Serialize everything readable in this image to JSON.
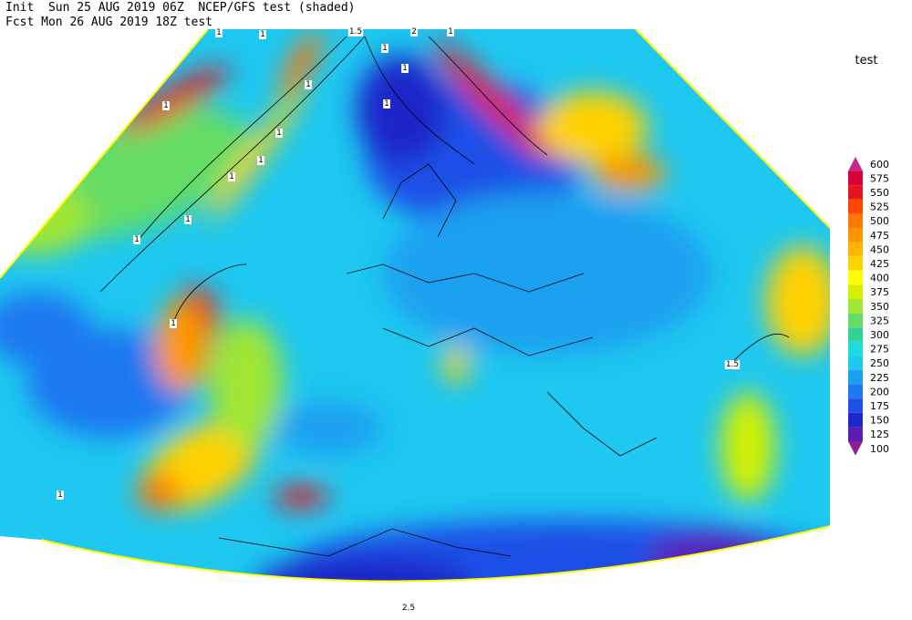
{
  "header": {
    "line1": "Init  Sun 25 AUG 2019 06Z  NCEP/GFS test (shaded)",
    "line2": "Fcst Mon 26 AUG 2019 18Z test"
  },
  "legend": {
    "title": "test",
    "levels": [
      {
        "label": "600",
        "color": "#c8288c"
      },
      {
        "label": "575",
        "color": "#d7003c"
      },
      {
        "label": "550",
        "color": "#e6141e"
      },
      {
        "label": "525",
        "color": "#ff4600"
      },
      {
        "label": "500",
        "color": "#ff7800"
      },
      {
        "label": "475",
        "color": "#ff9600"
      },
      {
        "label": "450",
        "color": "#ffb400"
      },
      {
        "label": "425",
        "color": "#ffd200"
      },
      {
        "label": "400",
        "color": "#ffff00"
      },
      {
        "label": "375",
        "color": "#d2f000"
      },
      {
        "label": "350",
        "color": "#a0e632"
      },
      {
        "label": "325",
        "color": "#64dc64"
      },
      {
        "label": "300",
        "color": "#32d296"
      },
      {
        "label": "275",
        "color": "#1edcdc"
      },
      {
        "label": "250",
        "color": "#1ec8f0"
      },
      {
        "label": "225",
        "color": "#1ea0f0"
      },
      {
        "label": "200",
        "color": "#1e78f0"
      },
      {
        "label": "175",
        "color": "#1e50e6"
      },
      {
        "label": "150",
        "color": "#1e28c8"
      },
      {
        "label": "125",
        "color": "#5a1eb4"
      },
      {
        "label": "100",
        "color": "#8c1e9a"
      }
    ]
  },
  "contour_labels": [
    "1.5",
    "2",
    "1",
    "1",
    "1",
    "1",
    "1",
    "1",
    "1",
    "1",
    "1",
    "1",
    "1",
    "1",
    "1.5",
    "1",
    "1",
    "1",
    "2.5"
  ]
}
